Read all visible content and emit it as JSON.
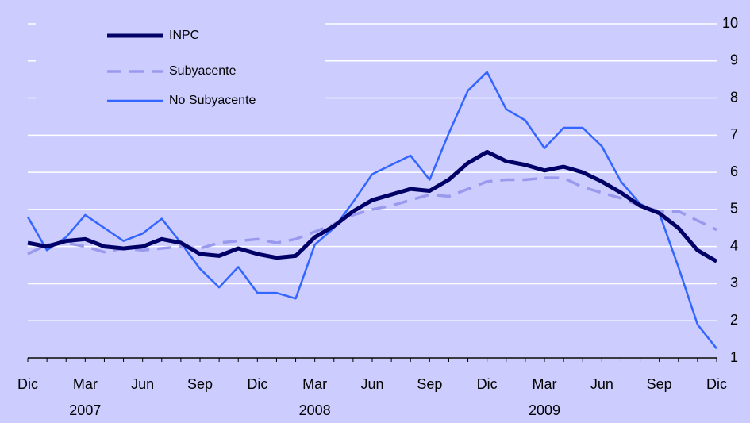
{
  "chart_data": {
    "type": "line",
    "categories": [
      "Dic",
      null,
      null,
      "Mar",
      null,
      null,
      "Jun",
      null,
      null,
      "Sep",
      null,
      null,
      "Dic",
      null,
      null,
      "Mar",
      null,
      null,
      "Jun",
      null,
      null,
      "Sep",
      null,
      null,
      "Dic",
      null,
      null,
      "Mar",
      null,
      null,
      "Jun",
      null,
      null,
      "Sep",
      null,
      null,
      "Dic"
    ],
    "years": [
      "2007",
      "2008",
      "2009"
    ],
    "series": [
      {
        "name": "INPC",
        "color": "#000066",
        "dash": false,
        "width": 5,
        "values": [
          4.1,
          4.0,
          4.15,
          4.2,
          4.0,
          3.95,
          4.0,
          4.2,
          4.1,
          3.8,
          3.75,
          3.95,
          3.8,
          3.7,
          3.75,
          4.25,
          4.55,
          4.95,
          5.25,
          5.4,
          5.55,
          5.5,
          5.8,
          6.25,
          6.55,
          6.3,
          6.2,
          6.05,
          6.15,
          6.0,
          5.75,
          5.45,
          5.1,
          4.9,
          4.5,
          3.9,
          3.6
        ]
      },
      {
        "name": "Subyacente",
        "color": "#9999ee",
        "dash": true,
        "width": 3.5,
        "values": [
          3.8,
          4.05,
          4.1,
          4.0,
          3.85,
          3.95,
          3.9,
          3.95,
          4.0,
          3.95,
          4.1,
          4.15,
          4.2,
          4.1,
          4.2,
          4.4,
          4.6,
          4.85,
          5.0,
          5.1,
          5.25,
          5.4,
          5.35,
          5.55,
          5.75,
          5.8,
          5.8,
          5.85,
          5.85,
          5.6,
          5.45,
          5.3,
          5.1,
          4.95,
          4.95,
          4.7,
          4.45
        ]
      },
      {
        "name": "No Subyacente",
        "color": "#3366ff",
        "dash": false,
        "width": 2.5,
        "values": [
          4.8,
          3.9,
          4.25,
          4.85,
          4.5,
          4.15,
          4.35,
          4.75,
          4.1,
          3.4,
          2.9,
          3.45,
          2.75,
          2.75,
          2.6,
          4.05,
          4.5,
          5.2,
          5.95,
          6.2,
          6.45,
          5.8,
          7.05,
          8.2,
          8.7,
          7.7,
          7.4,
          6.65,
          7.2,
          7.2,
          6.7,
          5.75,
          5.15,
          4.9,
          3.45,
          1.9,
          1.25
        ]
      }
    ],
    "ylim": [
      1,
      10
    ],
    "yticks": [
      1,
      2,
      3,
      4,
      5,
      6,
      7,
      8,
      9,
      10
    ],
    "grid": true
  }
}
